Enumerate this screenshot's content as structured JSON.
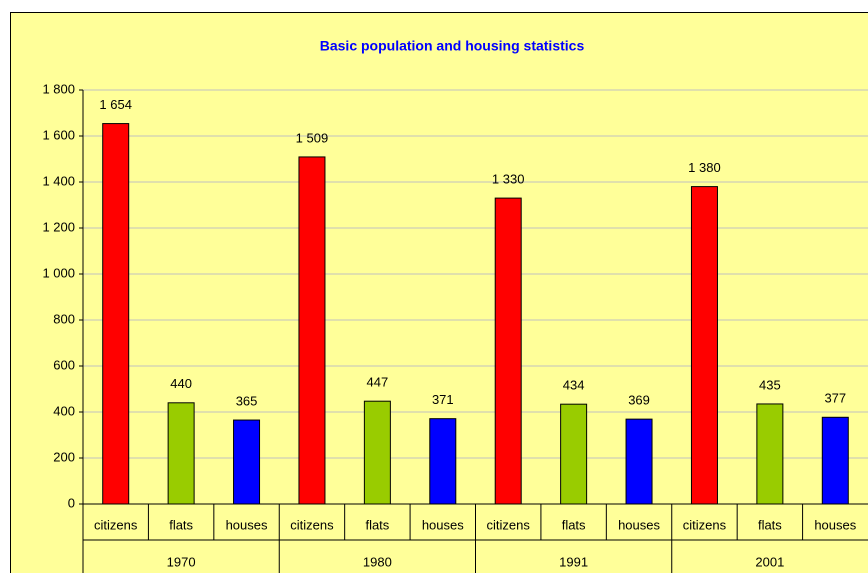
{
  "chart_data": {
    "type": "bar",
    "title": "Basic population and housing statistics",
    "groups": [
      {
        "name": "1970",
        "categories": [
          "citizens",
          "flats",
          "houses"
        ],
        "values": [
          1654,
          440,
          365
        ],
        "value_labels": [
          "1 654",
          "440",
          "365"
        ]
      },
      {
        "name": "1980",
        "categories": [
          "citizens",
          "flats",
          "houses"
        ],
        "values": [
          1509,
          447,
          371
        ],
        "value_labels": [
          "1 509",
          "447",
          "371"
        ]
      },
      {
        "name": "1991",
        "categories": [
          "citizens",
          "flats",
          "houses"
        ],
        "values": [
          1330,
          434,
          369
        ],
        "value_labels": [
          "1 330",
          "434",
          "369"
        ]
      },
      {
        "name": "2001",
        "categories": [
          "citizens",
          "flats",
          "houses"
        ],
        "values": [
          1380,
          435,
          377
        ],
        "value_labels": [
          "1 380",
          "435",
          "377"
        ]
      }
    ],
    "colors": [
      "#ff0000",
      "#99cc00",
      "#0000ff"
    ],
    "ylim": [
      0,
      1800
    ],
    "yticks": [
      0,
      200,
      400,
      600,
      800,
      {
        "value": 1000,
        "label": "1 000"
      },
      {
        "value": 1200,
        "label": "1 200"
      },
      {
        "value": 1400,
        "label": "1 400"
      },
      {
        "value": 1600,
        "label": "1 600"
      },
      {
        "value": 1800,
        "label": "1 800"
      }
    ],
    "grid": true
  }
}
